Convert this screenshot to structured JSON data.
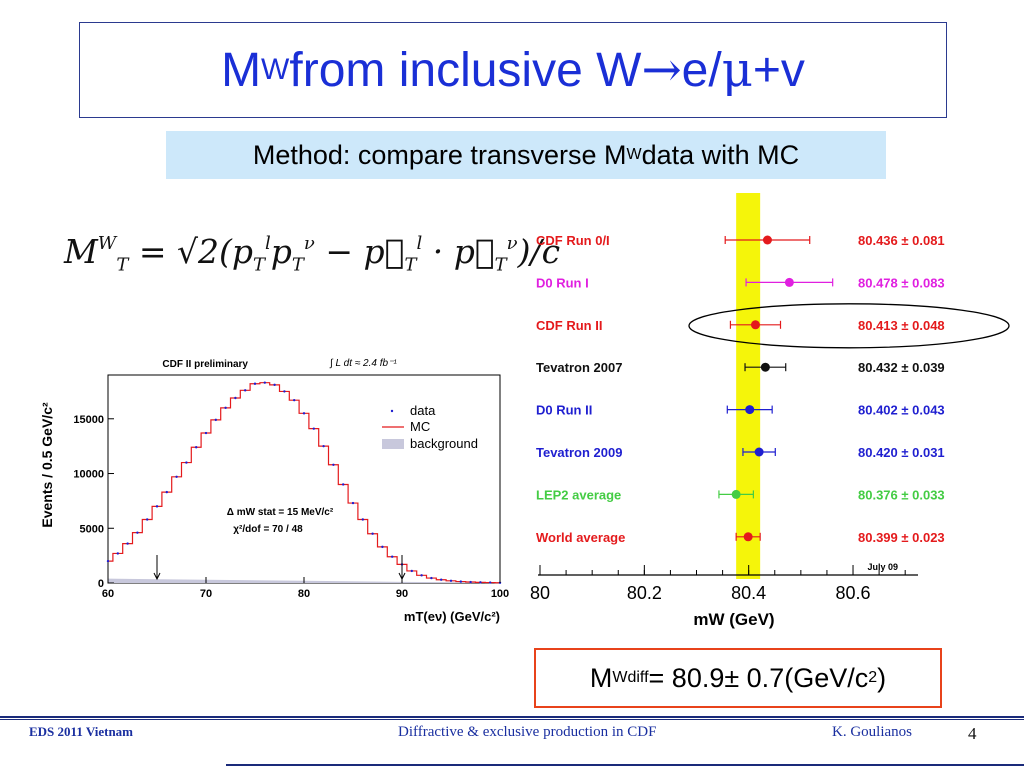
{
  "title": {
    "main": "M",
    "sub": "W",
    "rest": " from inclusive W",
    "arrow": "→",
    "tail1": "e/",
    "mu": "μ",
    "tail2": "+v"
  },
  "method": {
    "text": "Method: compare transverse M",
    "sup": "W",
    "rest": " data with MC"
  },
  "formula": {
    "lhs": "M",
    "lhs_sup": "W",
    "lhs_sub": "T",
    "rhs": "= √2(p",
    "rhs_tail": ")/c"
  },
  "mw_diff": {
    "prefix": "M",
    "sub": "W",
    "sup": "diff",
    "text": "= 80.9± 0.7(GeV/c",
    "sup2": "2",
    "close": ")"
  },
  "footer": {
    "left": "EDS 2011 Vietnam",
    "center": "Diffractive & exclusive production in CDF",
    "author": "K. Goulianos",
    "page": "4"
  },
  "chart_data": [
    {
      "type": "line",
      "title": "CDF II preliminary",
      "luminosity": "∫ L dt ≈ 2.4 fb⁻¹",
      "xlabel": "mT(eν) (GeV/c²)",
      "ylabel": "Events / 0.5 GeV/c²",
      "xlim": [
        60,
        100
      ],
      "ylim": [
        0,
        19000
      ],
      "xticks": [
        "60",
        "70",
        "80",
        "90",
        "100"
      ],
      "yticks": [
        "0",
        "5000",
        "10000",
        "15000"
      ],
      "fit_window_arrows": [
        65,
        90
      ],
      "legend": [
        "data",
        "MC",
        "background"
      ],
      "legend_position": "right",
      "annotation_1": "Δ mW stat = 15 MeV/c²",
      "annotation_2": "χ²/dof = 70 / 48",
      "series": [
        {
          "name": "data",
          "x": [
            60,
            61,
            62,
            63,
            64,
            65,
            66,
            67,
            68,
            69,
            70,
            71,
            72,
            73,
            74,
            75,
            76,
            77,
            78,
            79,
            80,
            81,
            82,
            83,
            84,
            85,
            86,
            87,
            88,
            89,
            90,
            91,
            92,
            93,
            94,
            95,
            96,
            97,
            98,
            99,
            100
          ],
          "values": [
            2000,
            2700,
            3600,
            4600,
            5800,
            7000,
            8300,
            9700,
            11000,
            12400,
            13700,
            14900,
            16000,
            16900,
            17600,
            18200,
            18300,
            18100,
            17500,
            16700,
            15500,
            14100,
            12500,
            10800,
            9000,
            7300,
            5800,
            4500,
            3300,
            2400,
            1700,
            1100,
            700,
            450,
            300,
            200,
            130,
            90,
            60,
            40,
            20
          ]
        },
        {
          "name": "MC",
          "x": [
            60,
            61,
            62,
            63,
            64,
            65,
            66,
            67,
            68,
            69,
            70,
            71,
            72,
            73,
            74,
            75,
            76,
            77,
            78,
            79,
            80,
            81,
            82,
            83,
            84,
            85,
            86,
            87,
            88,
            89,
            90,
            91,
            92,
            93,
            94,
            95,
            96,
            97,
            98,
            99,
            100
          ],
          "values": [
            2000,
            2700,
            3600,
            4600,
            5800,
            7000,
            8300,
            9700,
            11000,
            12400,
            13700,
            14900,
            16000,
            16900,
            17600,
            18200,
            18300,
            18100,
            17500,
            16700,
            15500,
            14100,
            12500,
            10800,
            9000,
            7300,
            5800,
            4500,
            3300,
            2400,
            1700,
            1100,
            700,
            450,
            300,
            200,
            130,
            90,
            60,
            40,
            20
          ]
        },
        {
          "name": "background",
          "x": [
            60,
            70,
            80,
            90,
            100
          ],
          "values": [
            400,
            300,
            200,
            100,
            50
          ]
        }
      ]
    },
    {
      "type": "scatter",
      "xlabel": "mW (GeV)",
      "xlim": [
        80.0,
        80.7
      ],
      "xticks": [
        "80",
        "80.2",
        "80.4",
        "80.6"
      ],
      "note": "July 09",
      "band": {
        "center": 80.399,
        "half_width": 0.023
      },
      "highlighted": "CDF Run  II",
      "measurements": [
        {
          "label": "CDF Run 0/I",
          "value": 80.436,
          "error": 0.081,
          "text": "80.436 ± 0.081",
          "color": "#e41a1c"
        },
        {
          "label": "D0 Run I",
          "value": 80.478,
          "error": 0.083,
          "text": "80.478 ± 0.083",
          "color": "#e020e0"
        },
        {
          "label": "CDF Run  II",
          "value": 80.413,
          "error": 0.048,
          "text": "80.413 ± 0.048",
          "color": "#e41a1c"
        },
        {
          "label": "Tevatron 2007",
          "value": 80.432,
          "error": 0.039,
          "text": "80.432 ± 0.039",
          "color": "#111111"
        },
        {
          "label": "D0 Run II",
          "value": 80.402,
          "error": 0.043,
          "text": "80.402 ± 0.043",
          "color": "#1f1fd0"
        },
        {
          "label": "Tevatron 2009",
          "value": 80.42,
          "error": 0.031,
          "text": "80.420 ± 0.031",
          "color": "#1f1fd0"
        },
        {
          "label": "LEP2 average",
          "value": 80.376,
          "error": 0.033,
          "text": "80.376 ± 0.033",
          "color": "#44cc44"
        },
        {
          "label": "World average",
          "value": 80.399,
          "error": 0.023,
          "text": "80.399 ± 0.023",
          "color": "#e41a1c"
        }
      ]
    }
  ]
}
